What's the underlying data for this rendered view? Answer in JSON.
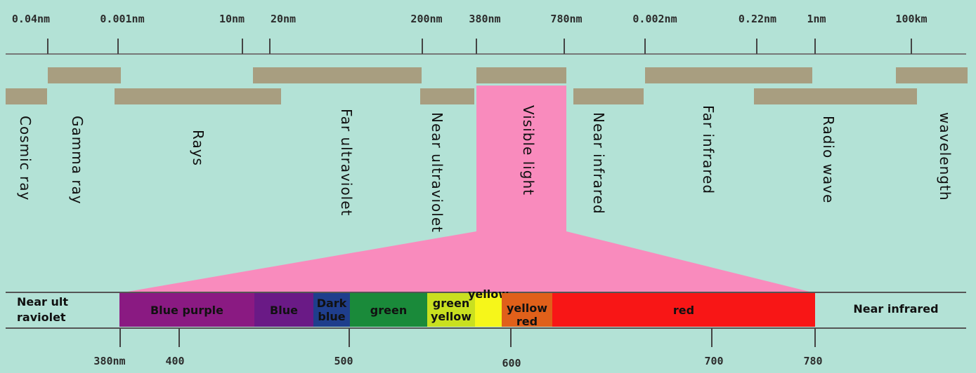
{
  "scale_top": {
    "ticks": [
      "0.04nm",
      "0.001nm",
      "10nm",
      "20nm",
      "200nm",
      "380nm",
      "780nm",
      "0.002nm",
      "0.22nm",
      "1nm",
      "100km"
    ]
  },
  "regions": [
    {
      "label": "Cosmic ray"
    },
    {
      "label": "Gamma ray"
    },
    {
      "label": "Rays"
    },
    {
      "label": "Far ultraviolet"
    },
    {
      "label": "Near ultraviolet"
    },
    {
      "label": "Visible light"
    },
    {
      "label": "Near infrared"
    },
    {
      "label": "Far infrared"
    },
    {
      "label": "Radio wave"
    },
    {
      "label": "wavelength"
    }
  ],
  "visible_spectrum": {
    "left_label": "Near ult raviolet",
    "right_label": "Near infrared",
    "bands": [
      {
        "label": "Blue purple",
        "color": "#8a1a82"
      },
      {
        "label": "Blue",
        "color": "#6a1a86"
      },
      {
        "label": "Dark blue",
        "color": "#1f3e8c"
      },
      {
        "label": "green",
        "color": "#1a8a3a"
      },
      {
        "label": "green yellow",
        "color": "#c9e020"
      },
      {
        "label": "yellow",
        "color": "#f6f61a"
      },
      {
        "label": "yellow red",
        "color": "#e0601a"
      },
      {
        "label": "red",
        "color": "#f81616"
      }
    ]
  },
  "scale_bottom": {
    "ticks": [
      "380nm",
      "400",
      "500",
      "600",
      "700",
      "780"
    ]
  },
  "colors": {
    "background": "#b3e2d6",
    "range_bar": "#a89e80",
    "visible_highlight": "#f98bbd",
    "axis_line": "#777777"
  }
}
